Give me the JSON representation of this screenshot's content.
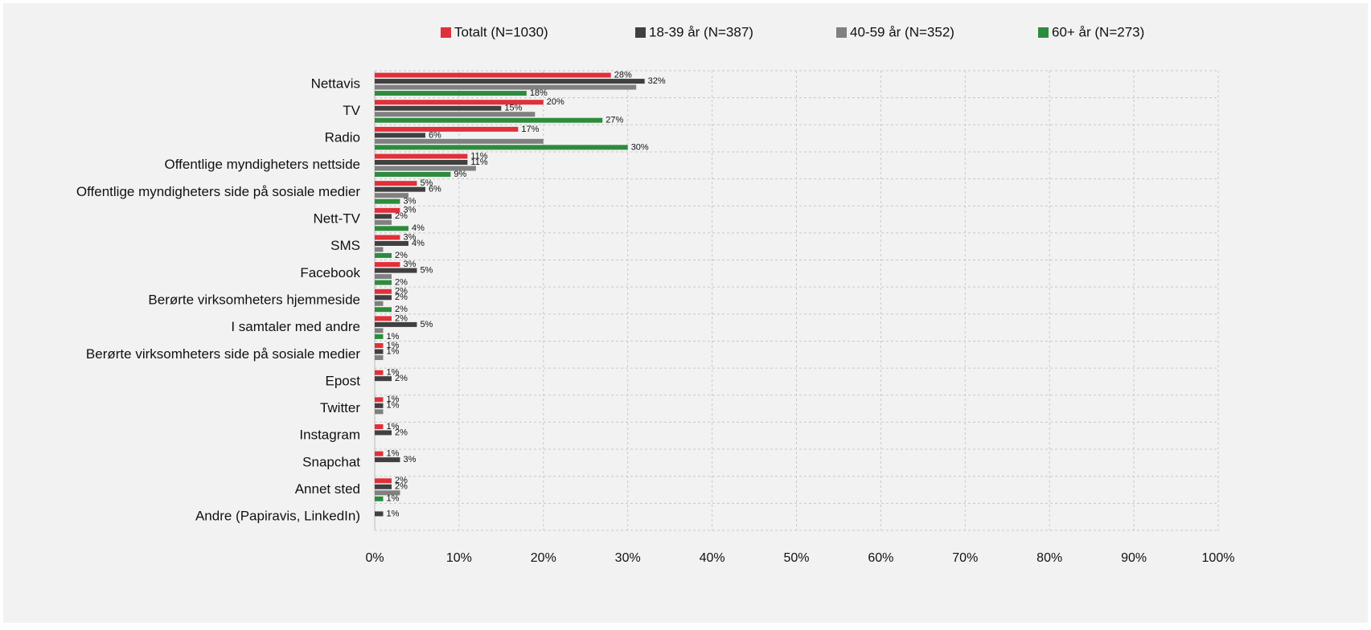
{
  "chart_data": {
    "type": "bar",
    "orientation": "horizontal",
    "categories": [
      "Nettavis",
      "TV",
      "Radio",
      "Offentlige myndigheters nettside",
      "Offentlige myndigheters side på sosiale medier",
      "Nett-TV",
      "SMS",
      "Facebook",
      "Berørte virksomheters hjemmeside",
      "I samtaler med andre",
      "Berørte virksomheters side på sosiale medier",
      "Epost",
      "Twitter",
      "Instagram",
      "Snapchat",
      "Annet sted",
      "Andre (Papiravis, LinkedIn)"
    ],
    "series": [
      {
        "name": "Totalt (N=1030)",
        "color": "#e0303a",
        "values": [
          28,
          20,
          17,
          11,
          5,
          3,
          3,
          3,
          2,
          2,
          1,
          1,
          1,
          1,
          1,
          2,
          null
        ],
        "value_labels": [
          "28%",
          "20%",
          "17%",
          "11%",
          "5%",
          "3%",
          "3%",
          "3%",
          "2%",
          "2%",
          "1%",
          "1%",
          "1%",
          "1%",
          "1%",
          "2%",
          null
        ]
      },
      {
        "name": "18-39 år (N=387)",
        "color": "#404040",
        "values": [
          32,
          15,
          6,
          11,
          6,
          2,
          4,
          5,
          2,
          5,
          1,
          2,
          1,
          2,
          3,
          2,
          1
        ],
        "value_labels": [
          "32%",
          "15%",
          "6%",
          "11%",
          "6%",
          "2%",
          "4%",
          "5%",
          "2%",
          "5%",
          "1%",
          "2%",
          "1%",
          "2%",
          "3%",
          "2%",
          "1%"
        ]
      },
      {
        "name": "40-59 år (N=352)",
        "color": "#808080",
        "values": [
          31,
          19,
          20,
          12,
          4,
          2,
          1,
          2,
          1,
          1,
          1,
          null,
          1,
          null,
          null,
          3,
          null
        ]
      },
      {
        "name": "60+ år (N=273)",
        "color": "#2e8b3e",
        "values": [
          18,
          27,
          30,
          9,
          3,
          4,
          2,
          2,
          2,
          1,
          null,
          null,
          null,
          null,
          null,
          1,
          null
        ],
        "value_labels": [
          "18%",
          "27%",
          "30%",
          "9%",
          "3%",
          "4%",
          "2%",
          "2%",
          "2%",
          "1%",
          null,
          null,
          null,
          null,
          null,
          "1%",
          null
        ]
      }
    ],
    "xlim": [
      0,
      100
    ],
    "xticks": [
      {
        "value": 0,
        "label": "0%"
      },
      {
        "value": 10,
        "label": "10%"
      },
      {
        "value": 20,
        "label": "20%"
      },
      {
        "value": 30,
        "label": "30%"
      },
      {
        "value": 40,
        "label": "40%"
      },
      {
        "value": 50,
        "label": "50%"
      },
      {
        "value": 60,
        "label": "60%"
      },
      {
        "value": 70,
        "label": "70%"
      },
      {
        "value": 80,
        "label": "80%"
      },
      {
        "value": 90,
        "label": "90%"
      },
      {
        "value": 100,
        "label": "100%"
      }
    ],
    "grid": true,
    "legend": "top"
  }
}
